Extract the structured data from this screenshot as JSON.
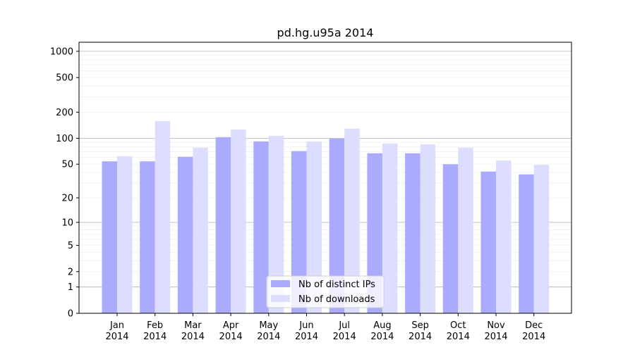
{
  "chart_data": {
    "type": "bar",
    "title": "pd.hg.u95a 2014",
    "xlabel": "",
    "ylabel": "",
    "yscale": "symlog (log10(1+y))",
    "ylim": [
      0,
      1270
    ],
    "yticks": [
      0,
      1,
      2,
      5,
      10,
      20,
      50,
      100,
      200,
      500,
      1000
    ],
    "grid": true,
    "legend_placement": "bottom-center",
    "categories": [
      "Jan\n2014",
      "Feb\n2014",
      "Mar\n2014",
      "Apr\n2014",
      "May\n2014",
      "Jun\n2014",
      "Jul\n2014",
      "Aug\n2014",
      "Sep\n2014",
      "Oct\n2014",
      "Nov\n2014",
      "Dec\n2014"
    ],
    "series": [
      {
        "name": "Nb of distinct IPs",
        "color": "#aaaaff",
        "values": [
          54,
          54,
          61,
          103,
          92,
          71,
          99,
          67,
          67,
          50,
          41,
          38
        ]
      },
      {
        "name": "Nb of downloads",
        "color": "#ddddff",
        "values": [
          62,
          158,
          78,
          126,
          107,
          92,
          129,
          87,
          85,
          78,
          55,
          49
        ]
      }
    ]
  }
}
